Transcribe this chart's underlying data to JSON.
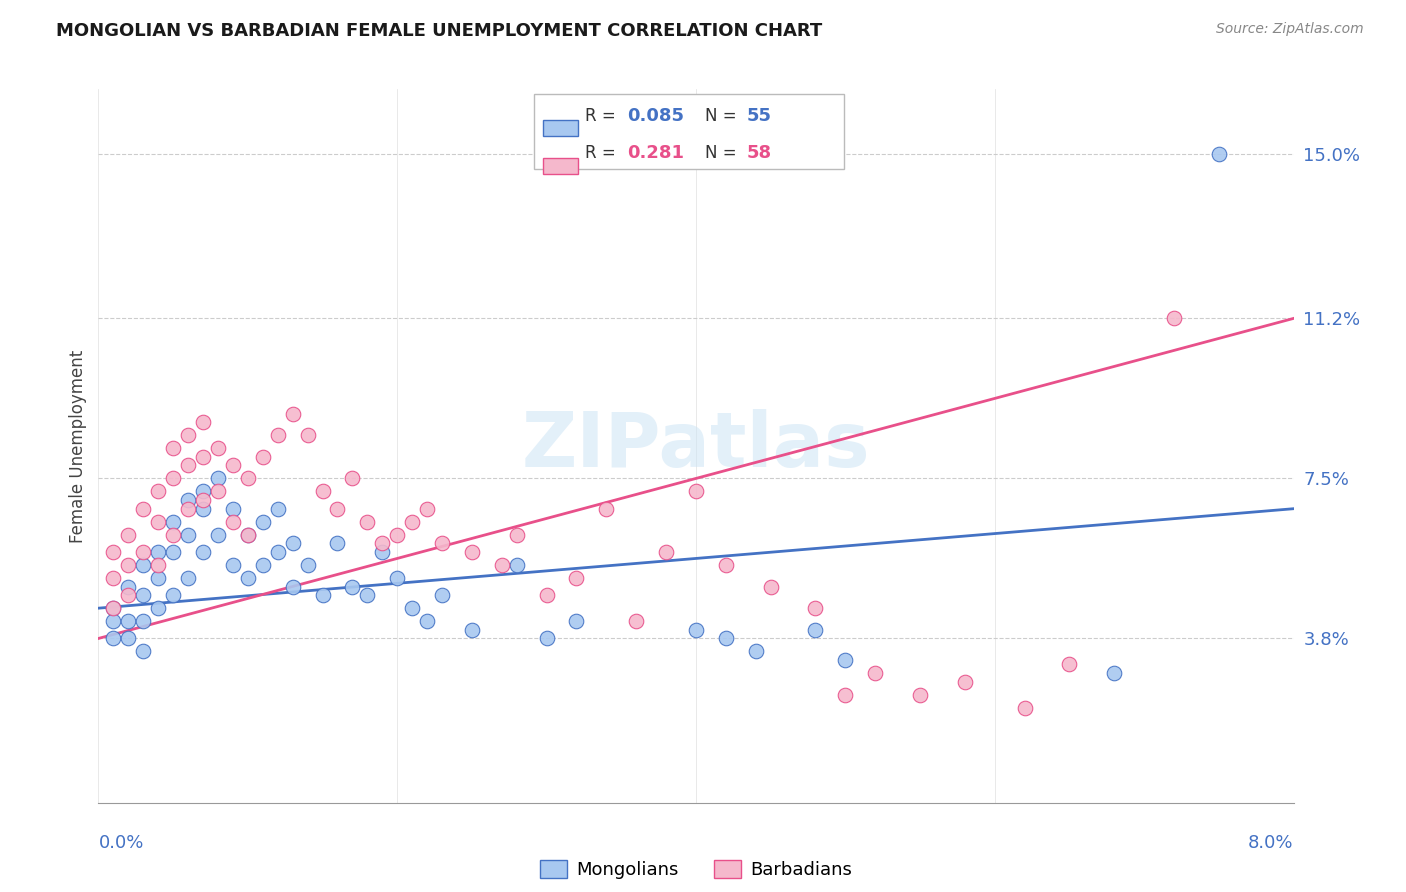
{
  "title": "MONGOLIAN VS BARBADIAN FEMALE UNEMPLOYMENT CORRELATION CHART",
  "source": "Source: ZipAtlas.com",
  "ylabel": "Female Unemployment",
  "ytick_labels": [
    "3.8%",
    "7.5%",
    "11.2%",
    "15.0%"
  ],
  "ytick_values": [
    0.038,
    0.075,
    0.112,
    0.15
  ],
  "mongolian_color": "#a8c8f0",
  "barbadian_color": "#f5b8cc",
  "mongolian_line_color": "#4472c4",
  "barbadian_line_color": "#e8508a",
  "watermark_text": "ZIPatlas",
  "xlim": [
    0.0,
    0.08
  ],
  "ylim": [
    0.0,
    0.165
  ],
  "mongolian_trend_y": [
    0.045,
    0.068
  ],
  "barbadian_trend_y": [
    0.038,
    0.112
  ],
  "mongolians_x": [
    0.001,
    0.001,
    0.001,
    0.002,
    0.002,
    0.002,
    0.003,
    0.003,
    0.003,
    0.003,
    0.004,
    0.004,
    0.004,
    0.005,
    0.005,
    0.005,
    0.006,
    0.006,
    0.006,
    0.007,
    0.007,
    0.007,
    0.008,
    0.008,
    0.009,
    0.009,
    0.01,
    0.01,
    0.011,
    0.011,
    0.012,
    0.012,
    0.013,
    0.013,
    0.014,
    0.015,
    0.016,
    0.017,
    0.018,
    0.019,
    0.02,
    0.021,
    0.022,
    0.023,
    0.025,
    0.028,
    0.03,
    0.032,
    0.04,
    0.042,
    0.044,
    0.048,
    0.05,
    0.068,
    0.075
  ],
  "mongolians_y": [
    0.045,
    0.042,
    0.038,
    0.05,
    0.042,
    0.038,
    0.055,
    0.048,
    0.042,
    0.035,
    0.058,
    0.052,
    0.045,
    0.065,
    0.058,
    0.048,
    0.07,
    0.062,
    0.052,
    0.072,
    0.068,
    0.058,
    0.075,
    0.062,
    0.068,
    0.055,
    0.062,
    0.052,
    0.065,
    0.055,
    0.068,
    0.058,
    0.06,
    0.05,
    0.055,
    0.048,
    0.06,
    0.05,
    0.048,
    0.058,
    0.052,
    0.045,
    0.042,
    0.048,
    0.04,
    0.055,
    0.038,
    0.042,
    0.04,
    0.038,
    0.035,
    0.04,
    0.033,
    0.03,
    0.15
  ],
  "barbadians_x": [
    0.001,
    0.001,
    0.001,
    0.002,
    0.002,
    0.002,
    0.003,
    0.003,
    0.004,
    0.004,
    0.004,
    0.005,
    0.005,
    0.005,
    0.006,
    0.006,
    0.006,
    0.007,
    0.007,
    0.007,
    0.008,
    0.008,
    0.009,
    0.009,
    0.01,
    0.01,
    0.011,
    0.012,
    0.013,
    0.014,
    0.015,
    0.016,
    0.017,
    0.018,
    0.019,
    0.02,
    0.021,
    0.022,
    0.023,
    0.025,
    0.027,
    0.028,
    0.03,
    0.032,
    0.034,
    0.036,
    0.038,
    0.04,
    0.042,
    0.045,
    0.048,
    0.05,
    0.052,
    0.055,
    0.058,
    0.062,
    0.065,
    0.072
  ],
  "barbadians_y": [
    0.058,
    0.052,
    0.045,
    0.062,
    0.055,
    0.048,
    0.068,
    0.058,
    0.072,
    0.065,
    0.055,
    0.082,
    0.075,
    0.062,
    0.085,
    0.078,
    0.068,
    0.088,
    0.08,
    0.07,
    0.082,
    0.072,
    0.078,
    0.065,
    0.075,
    0.062,
    0.08,
    0.085,
    0.09,
    0.085,
    0.072,
    0.068,
    0.075,
    0.065,
    0.06,
    0.062,
    0.065,
    0.068,
    0.06,
    0.058,
    0.055,
    0.062,
    0.048,
    0.052,
    0.068,
    0.042,
    0.058,
    0.072,
    0.055,
    0.05,
    0.045,
    0.025,
    0.03,
    0.025,
    0.028,
    0.022,
    0.032,
    0.112
  ],
  "r_mongolian": "0.085",
  "n_mongolian": "55",
  "r_barbadian": "0.281",
  "n_barbadian": "58"
}
